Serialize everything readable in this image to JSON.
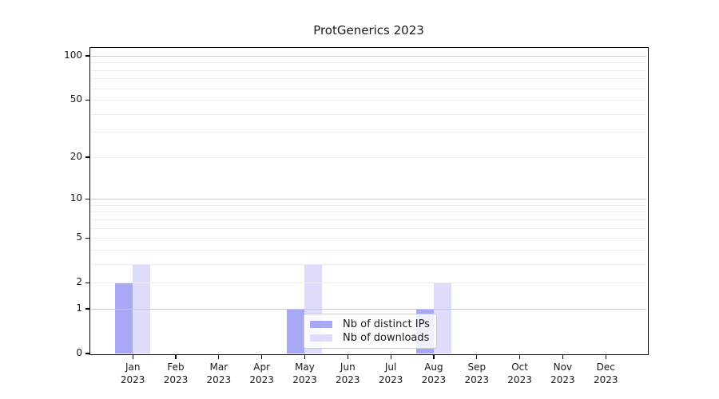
{
  "chart_data": {
    "type": "bar",
    "title": "ProtGenerics 2023",
    "categories": [
      "Jan 2023",
      "Feb 2023",
      "Mar 2023",
      "Apr 2023",
      "May 2023",
      "Jun 2023",
      "Jul 2023",
      "Aug 2023",
      "Sep 2023",
      "Oct 2023",
      "Nov 2023",
      "Dec 2023"
    ],
    "x_tick_line1": [
      "Jan",
      "Feb",
      "Mar",
      "Apr",
      "May",
      "Jun",
      "Jul",
      "Aug",
      "Sep",
      "Oct",
      "Nov",
      "Dec"
    ],
    "x_tick_line2": "2023",
    "series": [
      {
        "name": "Nb of distinct IPs",
        "color": "#a8a8f5",
        "values": [
          2,
          0,
          0,
          0,
          1,
          0,
          0,
          1,
          0,
          0,
          0,
          0
        ]
      },
      {
        "name": "Nb of downloads",
        "color": "#dddcfa",
        "values": [
          3,
          0,
          0,
          0,
          3,
          0,
          0,
          2,
          0,
          0,
          0,
          0
        ]
      }
    ],
    "xlabel": "",
    "ylabel": "",
    "yscale": "log1p",
    "ylim": [
      0,
      113
    ],
    "yticks": [
      0,
      1,
      2,
      5,
      10,
      20,
      50,
      100
    ],
    "major_gridlines": [
      1,
      10,
      100
    ],
    "minor_gridlines": [
      2,
      3,
      4,
      5,
      6,
      7,
      8,
      9,
      20,
      30,
      40,
      50,
      60,
      70,
      80,
      90
    ],
    "grid": "horizontal",
    "legend": {
      "position": "lower-center-inside",
      "entries": [
        "Nb of distinct IPs",
        "Nb of downloads"
      ]
    }
  },
  "colors": {
    "bar_distinct_ips": "#a8a8f5",
    "bar_downloads": "#dddcfa",
    "major_grid": "#c9c9c9",
    "minor_grid": "#ededed",
    "axis": "#000000",
    "text": "#1a1a1a",
    "legend_bg": "rgba(255,255,255,0.82)",
    "legend_border": "#cccccc",
    "background": "#ffffff"
  }
}
